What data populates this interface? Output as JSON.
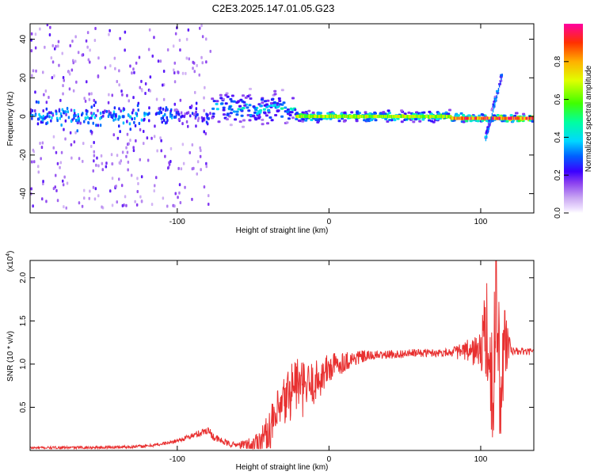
{
  "title": "C2E3.2025.147.01.05.G23",
  "colors": {
    "snr_line": "#e83030",
    "frame": "#000000",
    "spec_low": "#c9a6f2"
  },
  "chart_data": [
    {
      "type": "heatmap",
      "xlabel": "Height of straight line (km)",
      "ylabel": "Frequency (Hz)",
      "xlim": [
        -197,
        135
      ],
      "ylim": [
        -50,
        48
      ],
      "xticks": [
        -100,
        0,
        100
      ],
      "xtick_labels": [
        "-100",
        "0",
        "100"
      ],
      "yticks": [
        -40,
        -20,
        0,
        20,
        40
      ],
      "ytick_labels": [
        "-40",
        "-20",
        "0",
        "20",
        "40"
      ],
      "colorbar": {
        "label": "Normalized spectral amplitude",
        "range": [
          0.0,
          1.0
        ],
        "ticks": [
          0.0,
          0.2,
          0.4,
          0.6,
          0.8
        ],
        "tick_labels": [
          "0.0",
          "0.2",
          "0.4",
          "0.6",
          "0.8"
        ],
        "colormap": "rainbow"
      },
      "features": [
        {
          "x_range": [
            -197,
            -103
          ],
          "freq_center": 0,
          "amplitude": 0.35,
          "spread_hz": 48
        },
        {
          "x_range": [
            -103,
            -78
          ],
          "freq_center": 0,
          "amplitude": 0.25,
          "spread_hz": 48
        },
        {
          "x_range": [
            -78,
            -22
          ],
          "freq_center": 4,
          "amplitude": 0.45,
          "spread_hz": 12
        },
        {
          "x_range": [
            -22,
            80
          ],
          "freq_center": 0,
          "amplitude": 0.7,
          "spread_hz": 4
        },
        {
          "x_range": [
            80,
            135
          ],
          "freq_center": -1,
          "amplitude": 0.95,
          "spread_hz": 3
        },
        {
          "x_range": [
            103,
            114
          ],
          "freq_center": "sloped -12 to 22",
          "amplitude": 0.35,
          "spread_hz": 2
        }
      ]
    },
    {
      "type": "line",
      "xlabel": "Height of straight line (km)",
      "ylabel": "SNR (10 * v/v)",
      "y_multiplier": "(x10^4)",
      "xlim": [
        -197,
        135
      ],
      "ylim": [
        0,
        22000
      ],
      "xticks": [
        -100,
        0,
        100
      ],
      "xtick_labels": [
        "-100",
        "0",
        "100"
      ],
      "yticks": [
        5000,
        10000,
        15000,
        20000
      ],
      "ytick_labels": [
        "0.5",
        "1.0",
        "1.5",
        "2.0"
      ],
      "series": [
        {
          "x": [
            -197,
            -180,
            -160,
            -140,
            -120,
            -105,
            -95,
            -85,
            -80,
            -75,
            -65,
            -50,
            -42,
            -35,
            -28,
            -22,
            -18,
            -12,
            -5,
            0,
            10,
            20,
            30,
            40,
            50,
            60,
            70,
            80,
            90,
            95,
            100,
            104,
            108,
            110,
            113,
            116,
            120,
            135
          ],
          "y": [
            300,
            320,
            340,
            380,
            500,
            900,
            1400,
            2000,
            2400,
            1400,
            700,
            600,
            1800,
            3500,
            6000,
            8000,
            7000,
            7500,
            8500,
            9500,
            10300,
            10800,
            11000,
            11100,
            11200,
            11300,
            11300,
            11400,
            11400,
            11500,
            11500,
            14000,
            4000,
            21000,
            6000,
            13000,
            11500,
            11400
          ]
        }
      ],
      "noise_amplitude_key_points": {
        "x": [
          -197,
          -100,
          -80,
          -60,
          -42,
          -35,
          -28,
          -20,
          -10,
          0,
          10,
          30,
          80,
          96,
          100,
          104,
          108,
          112,
          116,
          120,
          135
        ],
        "amp": [
          150,
          200,
          500,
          300,
          1800,
          3000,
          3500,
          3500,
          2600,
          1900,
          1200,
          500,
          450,
          1800,
          2800,
          6000,
          9000,
          8500,
          5000,
          500,
          350
        ]
      }
    }
  ]
}
